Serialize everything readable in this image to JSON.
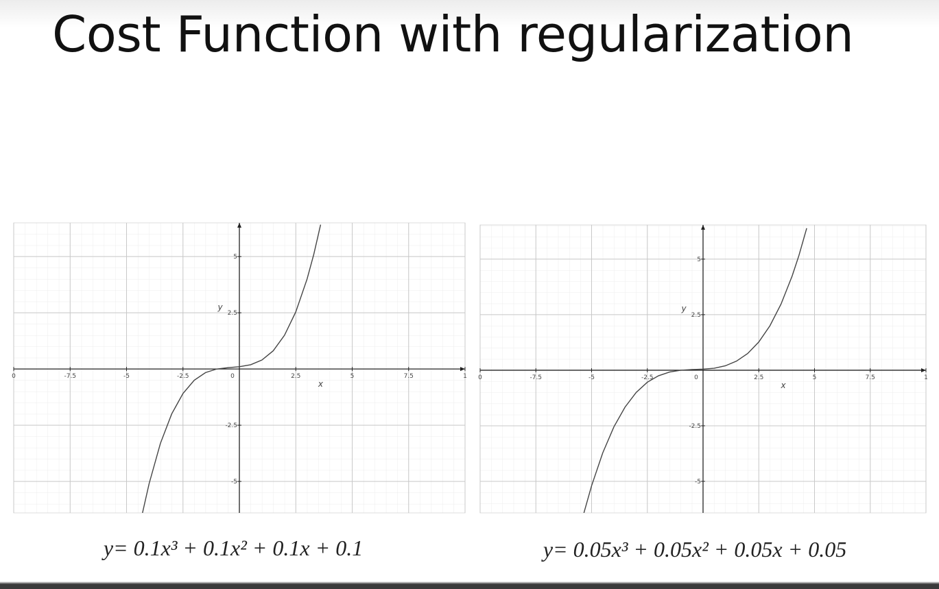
{
  "title": "Cost Function with regularization",
  "chart_data": [
    {
      "type": "line",
      "xlabel": "x",
      "ylabel": "y",
      "caption": "y= 0.1x³ + 0.1x² + 0.1x + 0.1",
      "x": [
        -4.3,
        -4,
        -3.5,
        -3,
        -2.5,
        -2,
        -1.5,
        -1,
        -0.5,
        0,
        0.5,
        1,
        1.5,
        2,
        2.5,
        3,
        3.3,
        3.6
      ],
      "series": [
        {
          "color": "#444444",
          "values": [
            -6.43,
            -5.1,
            -3.31,
            -2.0,
            -1.09,
            -0.5,
            -0.16,
            0,
            0.06,
            0.1,
            0.19,
            0.4,
            0.81,
            1.5,
            2.54,
            4.0,
            5.11,
            6.42
          ]
        }
      ],
      "xlim": [
        -10,
        10
      ],
      "ylim": [
        -6.4,
        6.5
      ],
      "xticks": [
        {
          "value": -10,
          "label": "0"
        },
        -7.5,
        -5,
        -2.5,
        0,
        2.5,
        5,
        7.5,
        {
          "value": 10,
          "label": "1"
        }
      ],
      "yticks": [
        -5,
        -2.5,
        2.5,
        5
      ],
      "grid": true
    },
    {
      "type": "line",
      "xlabel": "x",
      "ylabel": "y",
      "caption": "y= 0.05x³ + 0.05x² + 0.05x + 0.05",
      "x": [
        -5.35,
        -5,
        -4.5,
        -4,
        -3.5,
        -3,
        -2.5,
        -2,
        -1.5,
        -1,
        -0.5,
        0,
        0.5,
        1,
        1.5,
        2,
        2.5,
        3,
        3.5,
        4,
        4.3,
        4.65
      ],
      "series": [
        {
          "color": "#444444",
          "values": [
            -6.44,
            -5.2,
            -3.72,
            -2.55,
            -1.66,
            -1.0,
            -0.54,
            -0.25,
            -0.08,
            0,
            0.03,
            0.05,
            0.09,
            0.2,
            0.41,
            0.75,
            1.27,
            2.0,
            2.98,
            4.25,
            5.16,
            6.39
          ]
        }
      ],
      "xlim": [
        -10,
        10
      ],
      "ylim": [
        -6.42,
        6.54
      ],
      "xticks": [
        {
          "value": -10,
          "label": "0"
        },
        -7.5,
        -5,
        -2.5,
        0,
        2.5,
        5,
        7.5,
        {
          "value": 10,
          "label": "1"
        }
      ],
      "yticks": [
        -5,
        -2.5,
        2.5,
        5
      ],
      "grid": true
    }
  ]
}
